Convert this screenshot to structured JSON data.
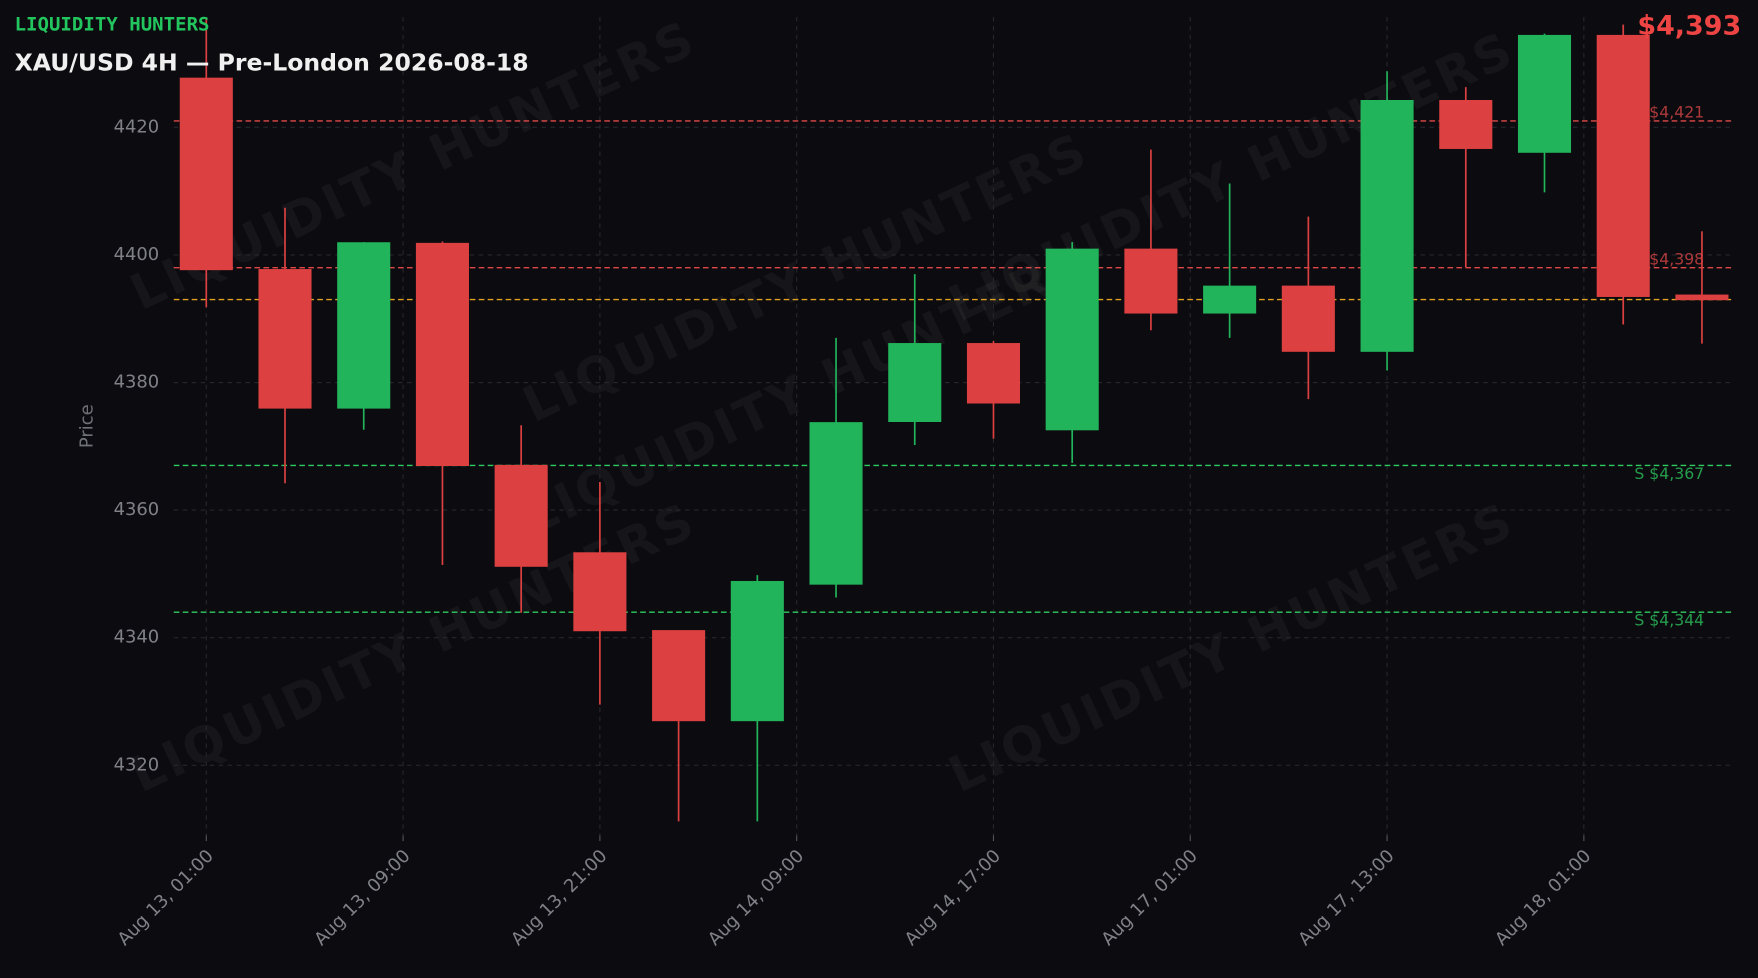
{
  "chart_data": {
    "type": "candlestick",
    "brand": "LIQUIDITY HUNTERS",
    "title": "XAU/USD 4H — Pre-London 2026-08-18",
    "price_label": "$4,393",
    "price": 4393,
    "price_color": "#e0a020",
    "watermark": "LIQUIDITY HUNTERS",
    "y_label": "Price",
    "up_color": "#22b45a",
    "down_color": "#dc4040",
    "grid": true,
    "x": [
      0,
      1,
      2,
      3,
      4,
      5,
      6,
      7,
      8,
      9,
      10,
      11,
      12,
      13,
      14,
      15,
      16,
      17,
      18,
      19
    ],
    "open": [
      4427.7,
      4397.7,
      4376.0,
      4401.8,
      4367.0,
      4353.3,
      4341.1,
      4327.0,
      4348.4,
      4373.9,
      4386.1,
      4372.6,
      4400.9,
      4390.9,
      4395.1,
      4384.9,
      4424.2,
      4416.1,
      4434.4,
      4393.7
    ],
    "high": [
      4437.0,
      4407.4,
      4402.0,
      4402.1,
      4373.3,
      4364.4,
      4341.1,
      4349.8,
      4387.0,
      4397.0,
      4386.5,
      4402.0,
      4416.5,
      4411.2,
      4406.0,
      4428.8,
      4426.3,
      4434.7,
      4436.1,
      4403.7
    ],
    "low": [
      4391.8,
      4364.2,
      4372.6,
      4351.4,
      4343.9,
      4329.5,
      4311.2,
      4311.2,
      4346.3,
      4370.2,
      4371.2,
      4367.4,
      4388.2,
      4387.0,
      4377.4,
      4381.9,
      4398.1,
      4409.8,
      4389.1,
      4386.1
    ],
    "close": [
      4397.7,
      4376.0,
      4401.9,
      4367.0,
      4351.2,
      4341.1,
      4327.0,
      4348.8,
      4373.7,
      4386.1,
      4376.8,
      4400.9,
      4390.9,
      4395.1,
      4384.9,
      4424.2,
      4416.7,
      4434.4,
      4393.5,
      4393.0
    ],
    "levels": [
      {
        "value": 4421,
        "label": "R $4,421",
        "color": "#e04848"
      },
      {
        "value": 4398,
        "label": "R $4,398",
        "color": "#e04848"
      },
      {
        "value": 4367,
        "label": "S $4,367",
        "color": "#2ecc60"
      },
      {
        "value": 4344,
        "label": "S $4,344",
        "color": "#2ecc60"
      }
    ],
    "xlim": [
      -0.413,
      19.413
    ],
    "xticks": [
      {
        "value": 0,
        "label": "Aug 13, 01:00"
      },
      {
        "value": 2.5,
        "label": "Aug 13, 09:00"
      },
      {
        "value": 5,
        "label": "Aug 13, 21:00"
      },
      {
        "value": 7.5,
        "label": "Aug 14, 09:00"
      },
      {
        "value": 10,
        "label": "Aug 14, 17:00"
      },
      {
        "value": 12.5,
        "label": "Aug 17, 01:00"
      },
      {
        "value": 15,
        "label": "Aug 17, 13:00"
      },
      {
        "value": 17.5,
        "label": "Aug 18, 01:00"
      }
    ],
    "ylim": [
      4309,
      4437.3
    ],
    "yticks": [
      4320,
      4340,
      4360,
      4380,
      4400,
      4420
    ]
  }
}
